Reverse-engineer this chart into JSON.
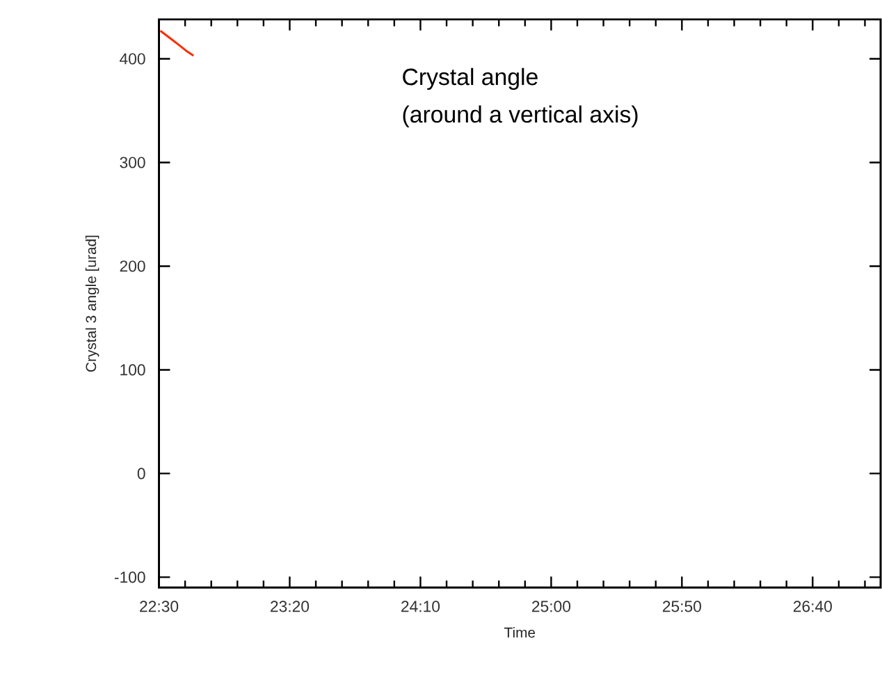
{
  "chart_data": {
    "type": "line",
    "xlabel": "Time",
    "ylabel": "Crystal 3 angle [urad]",
    "annotations": [
      "Crystal angle",
      "(around a vertical axis)"
    ],
    "series": [
      {
        "color": "#ff2a00",
        "x": [
          22.509,
          22.57,
          22.63,
          22.68,
          22.72
        ],
        "values": [
          427,
          420,
          413,
          407,
          403
        ]
      }
    ],
    "xlim": [
      22.5,
      27.1
    ],
    "ylim": [
      -110,
      438
    ],
    "xticks": [
      {
        "value": 22.5,
        "label": "22:30"
      },
      {
        "value": 23.3333,
        "label": "23:20"
      },
      {
        "value": 24.1667,
        "label": "24:10"
      },
      {
        "value": 25,
        "label": "25:00"
      },
      {
        "value": 25.8333,
        "label": "25:50"
      },
      {
        "value": 26.6667,
        "label": "26:40"
      }
    ],
    "yticks": [
      -100,
      0,
      100,
      200,
      300,
      400
    ],
    "grid": false,
    "marker": "none",
    "line_style": "solid"
  }
}
